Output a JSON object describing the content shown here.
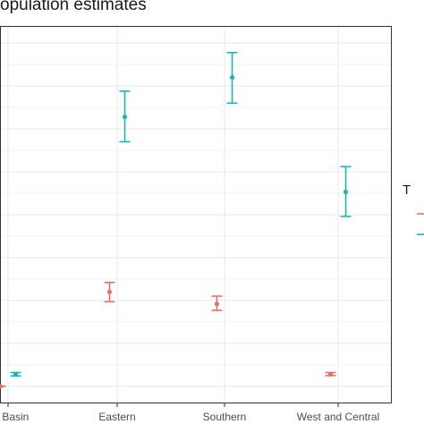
{
  "chart_data": {
    "type": "scatter",
    "title": "opulation estimates",
    "categories": [
      "go Basin",
      "Eastern",
      "Southern",
      "West and Central"
    ],
    "ylim": [
      -0.4,
      8.4
    ],
    "grid": true,
    "legend_title": "T",
    "series": [
      {
        "color": "#e07366",
        "points": [
          {
            "x": "go Basin",
            "y": 0.0,
            "lo": 0.0,
            "hi": 0.0
          },
          {
            "x": "Eastern",
            "y": 2.2,
            "lo": 1.97,
            "hi": 2.42
          },
          {
            "x": "Southern",
            "y": 1.92,
            "lo": 1.77,
            "hi": 2.1
          },
          {
            "x": "West and Central",
            "y": 0.28,
            "lo": 0.25,
            "hi": 0.32
          }
        ]
      },
      {
        "color": "#1fb3b6",
        "points": [
          {
            "x": "go Basin",
            "y": 0.28,
            "lo": 0.24,
            "hi": 0.32
          },
          {
            "x": "Eastern",
            "y": 6.28,
            "lo": 5.7,
            "hi": 6.88
          },
          {
            "x": "Southern",
            "y": 7.2,
            "lo": 6.6,
            "hi": 7.78
          },
          {
            "x": "West and Central",
            "y": 4.53,
            "lo": 3.96,
            "hi": 5.12
          }
        ]
      }
    ]
  }
}
